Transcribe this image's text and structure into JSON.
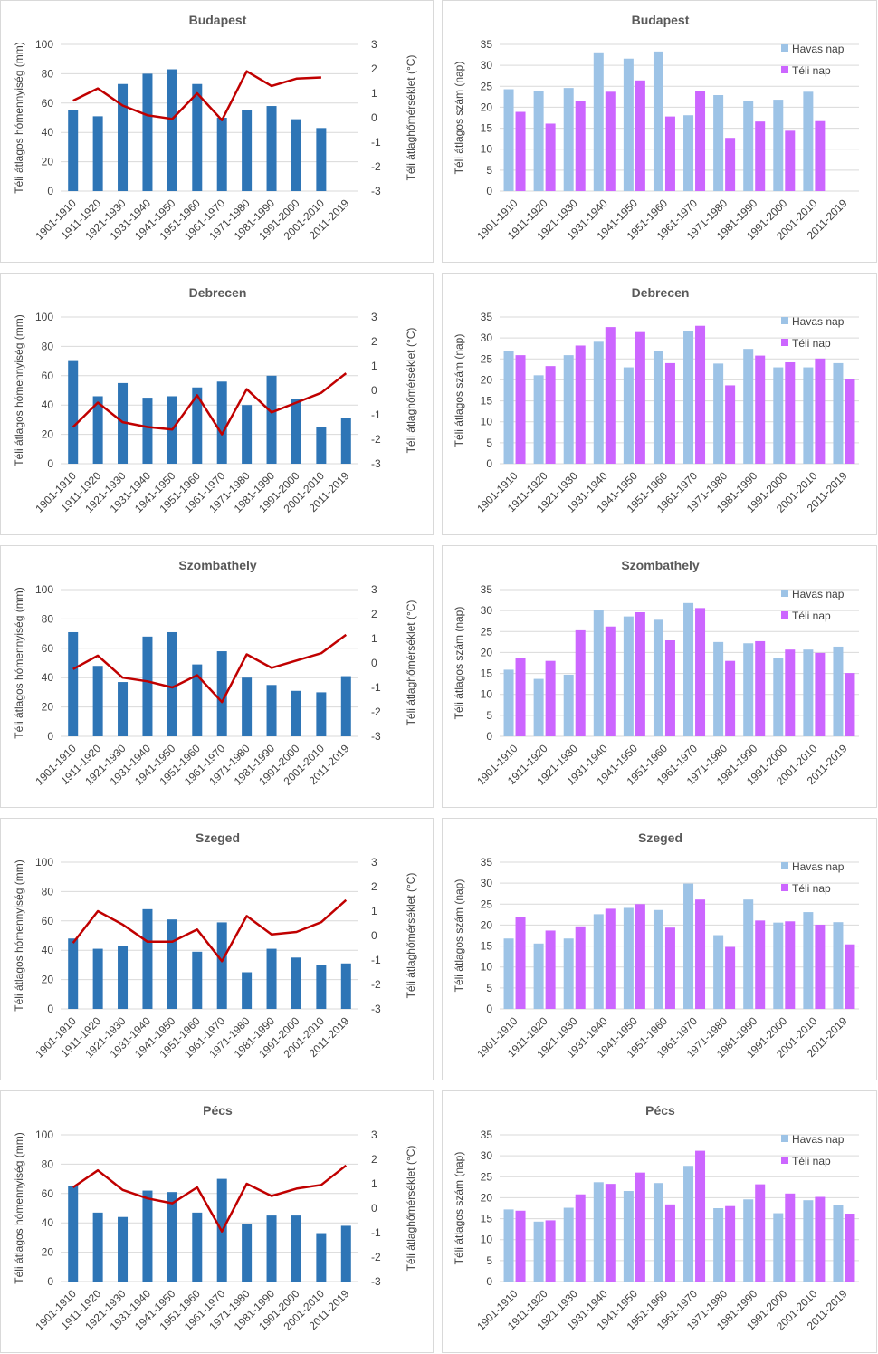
{
  "chart_data": [
    {
      "type": "bar+line",
      "title": "Budapest",
      "ylabel": "Téli átlagos hómennyiség (mm)",
      "y2label": "Téli átlaghőmérséklet (°C)",
      "ylim": [
        0,
        100
      ],
      "y2lim": [
        -3,
        3
      ],
      "categories": [
        "1901-1910",
        "1911-1920",
        "1921-1930",
        "1931-1940",
        "1941-1950",
        "1951-1960",
        "1961-1970",
        "1971-1980",
        "1981-1990",
        "1991-2000",
        "2001-2010",
        "2011-2019"
      ],
      "bars": [
        55,
        51,
        73,
        80,
        83,
        73,
        50,
        55,
        58,
        49,
        43,
        null
      ],
      "line": [
        0.7,
        1.2,
        0.5,
        0.1,
        -0.05,
        1.0,
        -0.1,
        1.9,
        1.3,
        1.6,
        1.65,
        null
      ]
    },
    {
      "type": "bar",
      "title": "Budapest",
      "ylabel": "Téli átlagos szám (nap)",
      "ylim": [
        0,
        35
      ],
      "categories": [
        "1901-1910",
        "1911-1920",
        "1921-1930",
        "1931-1940",
        "1941-1950",
        "1951-1960",
        "1961-1970",
        "1971-1980",
        "1981-1990",
        "1991-2000",
        "2001-2010",
        "2011-2019"
      ],
      "series": [
        {
          "name": "Havas nap",
          "color": "#9dc3e6",
          "values": [
            24.3,
            23.9,
            24.6,
            33.1,
            31.6,
            33.3,
            18.1,
            22.9,
            21.4,
            21.8,
            23.7,
            null
          ]
        },
        {
          "name": "Téli nap",
          "color": "#cc66ff",
          "values": [
            18.9,
            16.1,
            21.4,
            23.7,
            26.4,
            17.8,
            23.8,
            12.7,
            16.6,
            14.4,
            16.7,
            null
          ]
        }
      ]
    },
    {
      "type": "bar+line",
      "title": "Debrecen",
      "ylabel": "Téli átlagos hómennyiség (mm)",
      "y2label": "Téli átlaghőmérséklet (°C)",
      "ylim": [
        0,
        100
      ],
      "y2lim": [
        -3,
        3
      ],
      "categories": [
        "1901-1910",
        "1911-1920",
        "1921-1930",
        "1931-1940",
        "1941-1950",
        "1951-1960",
        "1961-1970",
        "1971-1980",
        "1981-1990",
        "1991-2000",
        "2001-2010",
        "2011-2019"
      ],
      "bars": [
        70,
        46,
        55,
        45,
        46,
        52,
        56,
        40,
        60,
        44,
        25,
        31
      ],
      "line": [
        -1.5,
        -0.5,
        -1.3,
        -1.5,
        -1.6,
        -0.2,
        -1.8,
        0.05,
        -0.9,
        -0.5,
        -0.1,
        0.7
      ]
    },
    {
      "type": "bar",
      "title": "Debrecen",
      "ylabel": "Téli átlagos szám (nap)",
      "ylim": [
        0,
        35
      ],
      "categories": [
        "1901-1910",
        "1911-1920",
        "1921-1930",
        "1931-1940",
        "1941-1950",
        "1951-1960",
        "1961-1970",
        "1971-1980",
        "1981-1990",
        "1991-2000",
        "2001-2010",
        "2011-2019"
      ],
      "series": [
        {
          "name": "Havas nap",
          "color": "#9dc3e6",
          "values": [
            26.8,
            21.1,
            25.9,
            29.1,
            23.0,
            26.8,
            31.7,
            23.9,
            27.4,
            23.0,
            23.0,
            24.0
          ]
        },
        {
          "name": "Téli nap",
          "color": "#cc66ff",
          "values": [
            25.9,
            23.3,
            28.2,
            32.6,
            31.4,
            24.0,
            32.9,
            18.7,
            25.8,
            24.2,
            25.1,
            20.2
          ]
        }
      ]
    },
    {
      "type": "bar+line",
      "title": "Szombathely",
      "ylabel": "Téli átlagos hómennyiség (mm)",
      "y2label": "Téli átlaghőmérséklet (°C)",
      "ylim": [
        0,
        100
      ],
      "y2lim": [
        -3,
        3
      ],
      "categories": [
        "1901-1910",
        "1911-1920",
        "1921-1930",
        "1931-1940",
        "1941-1950",
        "1951-1960",
        "1961-1970",
        "1971-1980",
        "1981-1990",
        "1991-2000",
        "2001-2010",
        "2011-2019"
      ],
      "bars": [
        71,
        48,
        37,
        68,
        71,
        49,
        58,
        40,
        35,
        31,
        30,
        41
      ],
      "line": [
        -0.25,
        0.3,
        -0.6,
        -0.75,
        -1.0,
        -0.5,
        -1.6,
        0.35,
        -0.2,
        0.1,
        0.4,
        1.15
      ]
    },
    {
      "type": "bar",
      "title": "Szombathely",
      "ylabel": "Téli átlagos szám (nap)",
      "ylim": [
        0,
        35
      ],
      "categories": [
        "1901-1910",
        "1911-1920",
        "1921-1930",
        "1931-1940",
        "1941-1950",
        "1951-1960",
        "1961-1970",
        "1971-1980",
        "1981-1990",
        "1991-2000",
        "2001-2010",
        "2011-2019"
      ],
      "series": [
        {
          "name": "Havas nap",
          "color": "#9dc3e6",
          "values": [
            15.9,
            13.7,
            14.7,
            30.1,
            28.6,
            27.8,
            31.8,
            22.5,
            22.2,
            18.6,
            20.7,
            21.4
          ]
        },
        {
          "name": "Téli nap",
          "color": "#cc66ff",
          "values": [
            18.7,
            18.0,
            25.3,
            26.2,
            29.6,
            22.9,
            30.6,
            18.0,
            22.7,
            20.7,
            19.9,
            15.1
          ]
        }
      ]
    },
    {
      "type": "bar+line",
      "title": "Szeged",
      "ylabel": "Téli átlagos hómennyiség (mm)",
      "y2label": "Téli átlaghőmérséklet (°C)",
      "ylim": [
        0,
        100
      ],
      "y2lim": [
        -3,
        3
      ],
      "categories": [
        "1901-1910",
        "1911-1920",
        "1921-1930",
        "1931-1940",
        "1941-1950",
        "1951-1960",
        "1961-1970",
        "1971-1980",
        "1981-1990",
        "1991-2000",
        "2001-2010",
        "2011-2019"
      ],
      "bars": [
        48,
        41,
        43,
        68,
        61,
        39,
        59,
        25,
        41,
        35,
        30,
        31
      ],
      "line": [
        -0.3,
        1.0,
        0.45,
        -0.25,
        -0.25,
        0.25,
        -1.05,
        0.8,
        0.05,
        0.15,
        0.55,
        1.45
      ]
    },
    {
      "type": "bar",
      "title": "Szeged",
      "ylabel": "Téli átlagos szám (nap)",
      "ylim": [
        0,
        35
      ],
      "categories": [
        "1901-1910",
        "1911-1920",
        "1921-1930",
        "1931-1940",
        "1941-1950",
        "1951-1960",
        "1961-1970",
        "1971-1980",
        "1981-1990",
        "1991-2000",
        "2001-2010",
        "2011-2019"
      ],
      "series": [
        {
          "name": "Havas nap",
          "color": "#9dc3e6",
          "values": [
            16.8,
            15.6,
            16.8,
            22.6,
            24.1,
            23.6,
            29.9,
            17.6,
            26.1,
            20.6,
            23.1,
            20.7
          ]
        },
        {
          "name": "Téli nap",
          "color": "#cc66ff",
          "values": [
            21.9,
            18.7,
            19.7,
            23.9,
            25.0,
            19.4,
            26.1,
            14.8,
            21.1,
            20.9,
            20.1,
            15.4
          ]
        }
      ]
    },
    {
      "type": "bar+line",
      "title": "Pécs",
      "ylabel": "Téli átlagos hómennyiség (mm)",
      "y2label": "Téli átlaghőmérséklet (°C)",
      "ylim": [
        0,
        100
      ],
      "y2lim": [
        -3,
        3
      ],
      "categories": [
        "1901-1910",
        "1911-1920",
        "1921-1930",
        "1931-1940",
        "1941-1950",
        "1951-1960",
        "1961-1970",
        "1971-1980",
        "1981-1990",
        "1991-2000",
        "2001-2010",
        "2011-2019"
      ],
      "bars": [
        65,
        47,
        44,
        62,
        61,
        47,
        70,
        39,
        45,
        45,
        33,
        38
      ],
      "line": [
        0.85,
        1.55,
        0.75,
        0.4,
        0.2,
        0.85,
        -0.95,
        1.0,
        0.5,
        0.8,
        0.95,
        1.75
      ]
    },
    {
      "type": "bar",
      "title": "Pécs",
      "ylabel": "Téli átlagos szám (nap)",
      "ylim": [
        0,
        35
      ],
      "categories": [
        "1901-1910",
        "1911-1920",
        "1921-1930",
        "1931-1940",
        "1941-1950",
        "1951-1960",
        "1961-1970",
        "1971-1980",
        "1981-1990",
        "1991-2000",
        "2001-2010",
        "2011-2019"
      ],
      "series": [
        {
          "name": "Havas nap",
          "color": "#9dc3e6",
          "values": [
            17.2,
            14.3,
            17.6,
            23.7,
            21.6,
            23.5,
            27.6,
            17.5,
            19.6,
            16.3,
            19.4,
            18.3
          ]
        },
        {
          "name": "Téli nap",
          "color": "#cc66ff",
          "values": [
            16.9,
            14.6,
            20.8,
            23.3,
            26.0,
            18.4,
            31.2,
            18.0,
            23.2,
            21.0,
            20.2,
            16.2
          ]
        }
      ]
    }
  ],
  "colors": {
    "bar_left": "#2e75b6",
    "line_left": "#c00000",
    "havas": "#9dc3e6",
    "teli": "#cc66ff",
    "grid": "#d9d9d9"
  }
}
